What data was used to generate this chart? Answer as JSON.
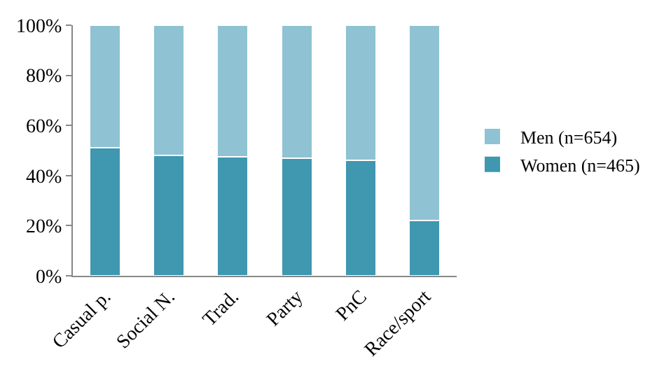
{
  "chart_data": {
    "type": "bar",
    "stacked": true,
    "categories": [
      "Casual p.",
      "Social N.",
      "Trad.",
      "Party",
      "PnC",
      "Race/sport"
    ],
    "series": [
      {
        "name": "Women (n=465)",
        "color": "#3f97b0",
        "values": [
          51,
          48,
          47.5,
          47,
          46,
          22
        ]
      },
      {
        "name": "Men (n=654)",
        "color": "#8fc2d3",
        "values": [
          49,
          52,
          52.5,
          53,
          54,
          78
        ]
      }
    ],
    "ylim": [
      0,
      100
    ],
    "yticks": [
      {
        "value": 0,
        "label": "0%"
      },
      {
        "value": 20,
        "label": "20%"
      },
      {
        "value": 40,
        "label": "40%"
      },
      {
        "value": 60,
        "label": "60%"
      },
      {
        "value": 80,
        "label": "80%"
      },
      {
        "value": 100,
        "label": "100%"
      }
    ],
    "legend": "right"
  }
}
